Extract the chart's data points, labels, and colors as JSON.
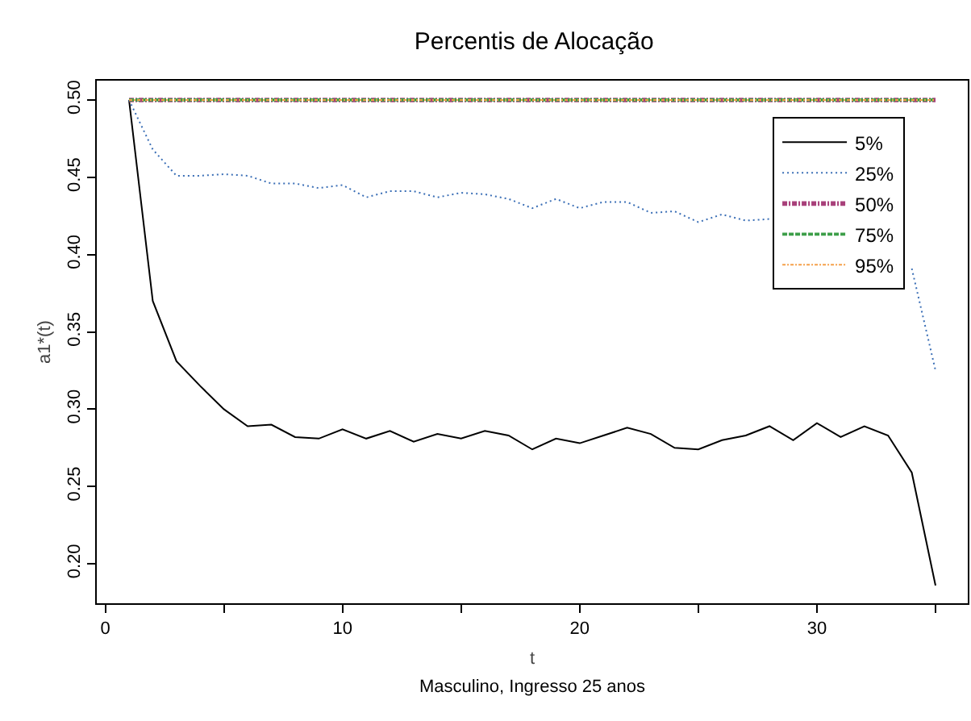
{
  "chart_data": {
    "type": "line",
    "title": "Percentis de Alocação",
    "xlabel": "t",
    "ylabel": "a1*(t)",
    "subtitle": "Masculino, Ingresso 25 anos",
    "x": [
      1,
      2,
      3,
      4,
      5,
      6,
      7,
      8,
      9,
      10,
      11,
      12,
      13,
      14,
      15,
      16,
      17,
      18,
      19,
      20,
      21,
      22,
      23,
      24,
      25,
      26,
      27,
      28,
      29,
      30,
      31,
      32,
      33,
      34,
      35
    ],
    "series": [
      {
        "name": "5%",
        "color": "#000000",
        "line_style": "solid",
        "values": [
          0.5,
          0.37,
          0.331,
          0.315,
          0.3,
          0.289,
          0.29,
          0.282,
          0.281,
          0.287,
          0.281,
          0.286,
          0.279,
          0.284,
          0.281,
          0.286,
          0.283,
          0.274,
          0.281,
          0.278,
          0.283,
          0.288,
          0.284,
          0.275,
          0.274,
          0.28,
          0.283,
          0.289,
          0.28,
          0.291,
          0.282,
          0.289,
          0.283,
          0.259,
          0.186
        ]
      },
      {
        "name": "25%",
        "color": "#3b6fb6",
        "line_style": "dotted",
        "values": [
          0.5,
          0.468,
          0.451,
          0.451,
          0.452,
          0.451,
          0.446,
          0.446,
          0.443,
          0.445,
          0.437,
          0.441,
          0.441,
          0.437,
          0.44,
          0.439,
          0.436,
          0.43,
          0.436,
          0.43,
          0.434,
          0.434,
          0.427,
          0.428,
          0.421,
          0.426,
          0.422,
          0.423,
          null,
          null,
          null,
          null,
          null,
          0.391,
          0.325
        ]
      },
      {
        "name": "50%",
        "color": "#a8407a",
        "line_style": "dashdot",
        "values": [
          0.5,
          0.5,
          0.5,
          0.5,
          0.5,
          0.5,
          0.5,
          0.5,
          0.5,
          0.5,
          0.5,
          0.5,
          0.5,
          0.5,
          0.5,
          0.5,
          0.5,
          0.5,
          0.5,
          0.5,
          0.5,
          0.5,
          0.5,
          0.5,
          0.5,
          0.5,
          0.5,
          0.5,
          0.5,
          0.5,
          0.5,
          0.5,
          0.5,
          0.5,
          0.5
        ]
      },
      {
        "name": "75%",
        "color": "#3c9e48",
        "line_style": "dashed",
        "values": [
          0.5,
          0.5,
          0.5,
          0.5,
          0.5,
          0.5,
          0.5,
          0.5,
          0.5,
          0.5,
          0.5,
          0.5,
          0.5,
          0.5,
          0.5,
          0.5,
          0.5,
          0.5,
          0.5,
          0.5,
          0.5,
          0.5,
          0.5,
          0.5,
          0.5,
          0.5,
          0.5,
          0.5,
          0.5,
          0.5,
          0.5,
          0.5,
          0.5,
          0.5,
          0.5
        ]
      },
      {
        "name": "95%",
        "color": "#f5a04a",
        "line_style": "longdashdot",
        "values": [
          0.5,
          0.5,
          0.5,
          0.5,
          0.5,
          0.5,
          0.5,
          0.5,
          0.5,
          0.5,
          0.5,
          0.5,
          0.5,
          0.5,
          0.5,
          0.5,
          0.5,
          0.5,
          0.5,
          0.5,
          0.5,
          0.5,
          0.5,
          0.5,
          0.5,
          0.5,
          0.5,
          0.5,
          0.5,
          0.5,
          0.5,
          0.5,
          0.5,
          0.5,
          0.5
        ]
      }
    ],
    "xlim": [
      -0.36,
      36.36
    ],
    "xticks": [
      0,
      {
        "value": 5,
        "label": null
      },
      10,
      {
        "value": 15,
        "label": null
      },
      20,
      {
        "value": 25,
        "label": null
      },
      30,
      {
        "value": 35,
        "label": null
      }
    ],
    "ylim": [
      0.1745,
      0.5125
    ],
    "yticks": [
      {
        "value": 0.2,
        "label": "0.20"
      },
      {
        "value": 0.25,
        "label": "0.25"
      },
      {
        "value": 0.3,
        "label": "0.30"
      },
      {
        "value": 0.35,
        "label": "0.35"
      },
      {
        "value": 0.4,
        "label": "0.40"
      },
      {
        "value": 0.45,
        "label": "0.45"
      },
      {
        "value": 0.5,
        "label": "0.50"
      }
    ],
    "grid": false,
    "legend": "top right"
  }
}
